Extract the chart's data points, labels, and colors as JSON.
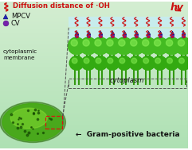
{
  "bg_color": "#b0e0b8",
  "bg_color2": "#78c888",
  "membrane_outer_color": "#44bb22",
  "membrane_outer_hi": "#88ee55",
  "membrane_inner_color": "#33aa11",
  "membrane_inner_hi": "#66cc33",
  "water_color": "#c5edf8",
  "dye_mpcv_color": "#2222bb",
  "dye_cv_color": "#7722aa",
  "oh_color": "#cc1111",
  "hv_color": "#cc1111",
  "title_color": "#cc1111",
  "black": "#111111",
  "gray": "#555555",
  "title_text": "Diffusion distance of ·OH",
  "legend_mpcv": "MPCV",
  "legend_cv": "CV",
  "cytoplasmic_membrane": "cytoplasmic\nmembrane",
  "cytoplasm_text": "cytoplasm",
  "bacteria_arrow_text": "←  Gram-positive bacteria",
  "hv_text": "hv"
}
